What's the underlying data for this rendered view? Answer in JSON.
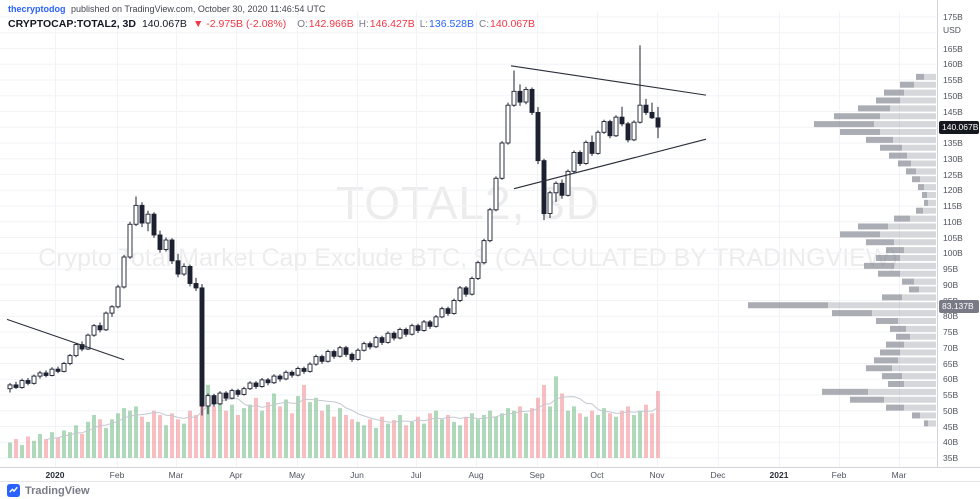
{
  "header": {
    "byline": {
      "author": "thecryptodog",
      "rest": " published on TradingView.com, October 30, 2020 11:46:54 UTC"
    },
    "legend": {
      "symbol": "CRYPTOCAP:TOTAL2, 3D",
      "price": "140.067B",
      "change": "▼ -2.975B (-2.08%)",
      "ohlc": [
        {
          "label": "O:",
          "value": "142.966B",
          "color": "#f23645"
        },
        {
          "label": "H:",
          "value": "146.427B",
          "color": "#f23645"
        },
        {
          "label": "L:",
          "value": "136.528B",
          "color": "#2962ff"
        },
        {
          "label": "C:",
          "value": "140.067B",
          "color": "#f23645"
        }
      ]
    }
  },
  "watermark": {
    "line1": "TOTAL2, 3D",
    "line2": "Crypto Total Market Cap Exclude BTC, $ (CALCULATED BY TRADINGVIEW)"
  },
  "price_axis": {
    "unit": "USD",
    "suffix": "B",
    "ticks": [
      175,
      165,
      160,
      155,
      150,
      145,
      140,
      135,
      130,
      125,
      120,
      115,
      110,
      105,
      100,
      95,
      90,
      85,
      80,
      75,
      70,
      65,
      60,
      55,
      50,
      45,
      40,
      35
    ],
    "badges": [
      {
        "text": "140.067B",
        "price": 140.067,
        "bg": "#16181f",
        "fg": "#ffffff"
      },
      {
        "text": "83.137B",
        "price": 83.137,
        "bg": "#787b86",
        "fg": "#ffffff"
      }
    ]
  },
  "time_axis": [
    {
      "label": "2020",
      "x": 55,
      "year": true
    },
    {
      "label": "Feb",
      "x": 117
    },
    {
      "label": "Mar",
      "x": 176
    },
    {
      "label": "Apr",
      "x": 236
    },
    {
      "label": "May",
      "x": 297
    },
    {
      "label": "Jun",
      "x": 357
    },
    {
      "label": "Jul",
      "x": 416
    },
    {
      "label": "Aug",
      "x": 476
    },
    {
      "label": "Sep",
      "x": 537
    },
    {
      "label": "Oct",
      "x": 597
    },
    {
      "label": "Nov",
      "x": 657
    },
    {
      "label": "Dec",
      "x": 718
    },
    {
      "label": "2021",
      "x": 779,
      "year": true
    },
    {
      "label": "Feb",
      "x": 839
    },
    {
      "label": "Mar",
      "x": 899
    }
  ],
  "footer": {
    "brand": "TradingView"
  },
  "chart_data": {
    "type": "candlestick",
    "symbol": "CRYPTOCAP:TOTAL2",
    "interval": "3D",
    "title": "TOTAL2, 3D — Crypto Total Market Cap Exclude BTC, $",
    "y_unit": "billions USD",
    "ylim": [
      35,
      175
    ],
    "grid": true,
    "candles": [
      [
        57,
        58.8,
        55.8,
        58.2
      ],
      [
        58.2,
        59.2,
        56.9,
        57.4
      ],
      [
        57.4,
        60.2,
        57,
        59.6
      ],
      [
        59.6,
        60.4,
        58.1,
        58.7
      ],
      [
        58.7,
        61.5,
        58.3,
        61
      ],
      [
        61,
        62.6,
        60.2,
        62
      ],
      [
        62,
        62.8,
        60.6,
        61.2
      ],
      [
        61.2,
        63.8,
        60.9,
        63.2
      ],
      [
        63.2,
        64,
        61.9,
        62.5
      ],
      [
        62.5,
        65.5,
        62.2,
        65
      ],
      [
        65,
        68,
        64.5,
        67.5
      ],
      [
        67.5,
        71.5,
        67,
        71
      ],
      [
        71,
        72,
        68.9,
        69.6
      ],
      [
        69.6,
        74.5,
        69.3,
        74
      ],
      [
        74,
        77.5,
        73.5,
        77
      ],
      [
        77,
        78,
        74.9,
        75.7
      ],
      [
        75.7,
        81.5,
        75.3,
        81
      ],
      [
        81,
        83.5,
        79.8,
        83
      ],
      [
        83,
        90,
        82.5,
        89.3
      ],
      [
        89.3,
        99.5,
        88.8,
        98.8
      ],
      [
        98.8,
        110,
        98.2,
        109.2
      ],
      [
        109.2,
        118,
        108.6,
        115.2
      ],
      [
        115.2,
        116.2,
        108.3,
        109.6
      ],
      [
        109.6,
        113.5,
        107,
        112.4
      ],
      [
        112.4,
        113,
        104.9,
        105.8
      ],
      [
        105.8,
        107.2,
        100.2,
        101.2
      ],
      [
        101.2,
        105,
        100.5,
        104.2
      ],
      [
        104.2,
        104.8,
        96.6,
        97.6
      ],
      [
        97.6,
        99.8,
        92.4,
        93.4
      ],
      [
        93.4,
        96.8,
        92.8,
        95.8
      ],
      [
        95.8,
        96.4,
        89.5,
        90.4
      ],
      [
        90.4,
        92.2,
        88,
        89
      ],
      [
        89,
        90.2,
        48.5,
        51.5
      ],
      [
        51.5,
        55.5,
        48.9,
        54.8
      ],
      [
        54.8,
        55.4,
        51.3,
        52.2
      ],
      [
        52.2,
        56.2,
        51.8,
        55.6
      ],
      [
        55.6,
        56.2,
        53.1,
        54
      ],
      [
        54,
        57,
        53.6,
        56.4
      ],
      [
        56.4,
        57,
        54.4,
        55.2
      ],
      [
        55.2,
        57.6,
        54.8,
        57
      ],
      [
        57,
        59.4,
        56.6,
        58.8
      ],
      [
        58.8,
        59.4,
        56.9,
        57.7
      ],
      [
        57.7,
        60.4,
        57.3,
        59.8
      ],
      [
        59.8,
        60.4,
        58.1,
        58.9
      ],
      [
        58.9,
        61.6,
        58.5,
        61
      ],
      [
        61,
        61.6,
        59.3,
        60.1
      ],
      [
        60.1,
        62.8,
        59.7,
        62.2
      ],
      [
        62.2,
        62.8,
        60.5,
        61.3
      ],
      [
        61.3,
        64,
        60.9,
        63.4
      ],
      [
        63.4,
        64,
        61.7,
        62.5
      ],
      [
        62.5,
        65.4,
        62.1,
        64.8
      ],
      [
        64.8,
        67.8,
        64.3,
        67.2
      ],
      [
        67.2,
        67.8,
        64.9,
        65.7
      ],
      [
        65.7,
        69.4,
        65.3,
        68.8
      ],
      [
        68.8,
        69.4,
        66.5,
        67.3
      ],
      [
        67.3,
        70.6,
        66.9,
        70
      ],
      [
        70,
        70.6,
        67.1,
        67.9
      ],
      [
        67.9,
        68.5,
        65.5,
        66.3
      ],
      [
        66.3,
        69.8,
        65.9,
        69.2
      ],
      [
        69.2,
        71.9,
        68.8,
        71.3
      ],
      [
        71.3,
        72,
        69.5,
        70.3
      ],
      [
        70.3,
        73.8,
        69.9,
        73.2
      ],
      [
        73.2,
        73.8,
        70.9,
        71.7
      ],
      [
        71.7,
        75.2,
        71.3,
        74.6
      ],
      [
        74.6,
        75.2,
        72.3,
        73.1
      ],
      [
        73.1,
        76.4,
        72.7,
        75.8
      ],
      [
        75.8,
        76.4,
        73.5,
        74.3
      ],
      [
        74.3,
        77.6,
        73.9,
        77
      ],
      [
        77,
        77.6,
        74.7,
        75.5
      ],
      [
        75.5,
        78.8,
        75.1,
        78.2
      ],
      [
        78.2,
        78.8,
        76,
        76.8
      ],
      [
        76.8,
        80.4,
        76.4,
        79.8
      ],
      [
        79.8,
        83,
        79.4,
        82.4
      ],
      [
        82.4,
        83,
        80.1,
        80.9
      ],
      [
        80.9,
        85.6,
        80.5,
        85
      ],
      [
        85,
        89.6,
        84.5,
        89
      ],
      [
        89,
        89.6,
        86.2,
        87
      ],
      [
        87,
        92.6,
        86.6,
        92
      ],
      [
        92,
        97.6,
        91.5,
        97
      ],
      [
        97,
        104.6,
        96.5,
        104
      ],
      [
        104,
        114.4,
        103.5,
        113.8
      ],
      [
        113.8,
        124.4,
        113.3,
        123.8
      ],
      [
        123.8,
        135.6,
        123.3,
        135
      ],
      [
        135,
        147.8,
        134.5,
        147
      ],
      [
        147,
        158,
        146.5,
        151.4
      ],
      [
        151.4,
        153.6,
        146.8,
        148
      ],
      [
        148,
        152.8,
        147.3,
        152
      ],
      [
        152,
        152.6,
        143.9,
        144.7
      ],
      [
        144.7,
        146.4,
        128.3,
        129.4
      ],
      [
        129.4,
        130,
        110.5,
        112.6
      ],
      [
        112.6,
        119.8,
        111.2,
        119.2
      ],
      [
        119.2,
        122.8,
        116.3,
        122.2
      ],
      [
        122.2,
        123.4,
        117.3,
        118.4
      ],
      [
        118.4,
        126.6,
        118,
        126
      ],
      [
        126,
        132.6,
        125.5,
        132
      ],
      [
        132,
        132.6,
        127.7,
        128.5
      ],
      [
        128.5,
        135.8,
        128.1,
        135.2
      ],
      [
        135.2,
        137.4,
        130.9,
        131.7
      ],
      [
        131.7,
        139,
        131.3,
        138.4
      ],
      [
        138.4,
        142.4,
        137.9,
        141.8
      ],
      [
        141.8,
        142.4,
        136.5,
        137.3
      ],
      [
        137.3,
        143.8,
        136.9,
        143.2
      ],
      [
        143.2,
        146.5,
        140.3,
        141.1
      ],
      [
        141.1,
        141.7,
        135.2,
        136
      ],
      [
        136,
        142.2,
        135.6,
        141.6
      ],
      [
        141.6,
        166,
        141.2,
        147
      ],
      [
        147,
        149,
        143.9,
        144.7
      ],
      [
        144.7,
        147.8,
        142.6,
        143
      ],
      [
        142.966,
        146.427,
        136.528,
        140.067
      ]
    ],
    "volume": [
      0.18,
      0.22,
      0.15,
      0.25,
      0.2,
      0.28,
      0.22,
      0.3,
      0.24,
      0.32,
      0.3,
      0.38,
      0.28,
      0.42,
      0.5,
      0.45,
      0.35,
      0.45,
      0.52,
      0.58,
      0.55,
      0.6,
      0.48,
      0.42,
      0.55,
      0.5,
      0.38,
      0.52,
      0.45,
      0.4,
      0.55,
      0.5,
      1.0,
      0.85,
      0.6,
      0.7,
      0.55,
      0.62,
      0.5,
      0.58,
      0.62,
      0.7,
      0.55,
      0.65,
      0.75,
      0.6,
      0.68,
      0.52,
      0.72,
      0.85,
      0.65,
      0.7,
      0.55,
      0.62,
      0.48,
      0.58,
      0.5,
      0.45,
      0.42,
      0.38,
      0.45,
      0.35,
      0.48,
      0.4,
      0.44,
      0.5,
      0.38,
      0.42,
      0.48,
      0.4,
      0.52,
      0.55,
      0.45,
      0.5,
      0.42,
      0.38,
      0.48,
      0.52,
      0.45,
      0.5,
      0.55,
      0.48,
      0.52,
      0.58,
      0.55,
      0.6,
      0.52,
      0.58,
      0.7,
      0.85,
      0.6,
      0.95,
      0.75,
      0.55,
      0.6,
      0.52,
      0.48,
      0.55,
      0.5,
      0.58,
      0.52,
      0.48,
      0.55,
      0.6,
      0.5,
      0.55,
      0.62,
      0.52,
      0.78
    ],
    "trendlines": [
      {
        "t1": 83.5,
        "p1": 159.5,
        "t2": 116,
        "p2": 150.2
      },
      {
        "t1": 84,
        "p1": 120.5,
        "t2": 116,
        "p2": 136.2
      },
      {
        "t1": -0.5,
        "p1": 79,
        "t2": 19,
        "p2": 66.2
      }
    ],
    "volume_profile": [
      [
        156,
        20,
        8
      ],
      [
        153.5,
        36,
        14
      ],
      [
        151,
        52,
        20
      ],
      [
        148.5,
        60,
        24
      ],
      [
        146,
        78,
        32
      ],
      [
        143.5,
        102,
        46
      ],
      [
        141,
        122,
        60
      ],
      [
        138.5,
        96,
        40
      ],
      [
        136,
        70,
        27
      ],
      [
        133.5,
        56,
        22
      ],
      [
        131,
        47,
        18
      ],
      [
        128.5,
        38,
        13
      ],
      [
        126,
        30,
        10
      ],
      [
        123.5,
        24,
        8
      ],
      [
        121,
        18,
        6
      ],
      [
        118.5,
        14,
        5
      ],
      [
        116,
        12,
        4
      ],
      [
        113.5,
        20,
        7
      ],
      [
        111,
        42,
        16
      ],
      [
        108.5,
        78,
        30
      ],
      [
        106,
        96,
        40
      ],
      [
        103.5,
        70,
        28
      ],
      [
        101,
        50,
        18
      ],
      [
        98.5,
        60,
        24
      ],
      [
        96,
        72,
        30
      ],
      [
        93.5,
        58,
        22
      ],
      [
        91,
        34,
        12
      ],
      [
        88.5,
        27,
        10
      ],
      [
        86,
        54,
        20
      ],
      [
        83.5,
        188,
        80
      ],
      [
        81,
        104,
        40
      ],
      [
        78.5,
        60,
        22
      ],
      [
        76,
        46,
        16
      ],
      [
        73.5,
        40,
        14
      ],
      [
        71,
        50,
        18
      ],
      [
        68.5,
        56,
        20
      ],
      [
        66,
        62,
        24
      ],
      [
        63.5,
        70,
        26
      ],
      [
        61,
        54,
        20
      ],
      [
        58.5,
        48,
        16
      ],
      [
        56,
        114,
        46
      ],
      [
        53.5,
        86,
        34
      ],
      [
        51,
        50,
        18
      ],
      [
        48.5,
        24,
        8
      ],
      [
        46,
        12,
        4
      ]
    ],
    "colors": {
      "up_fill": "#ffffff",
      "down_fill": "#1c2030",
      "outline": "#1c2030",
      "vol_up": "rgba(44,154,74,0.38)",
      "vol_down": "rgba(235,66,78,0.34)",
      "profile_light": "rgba(120,123,134,0.30)",
      "profile_dark": "rgba(120,123,134,0.62)",
      "trendline": "#2a2e39",
      "grid": "#f2f3f7",
      "vol_ma": "#c5c8d0"
    }
  }
}
